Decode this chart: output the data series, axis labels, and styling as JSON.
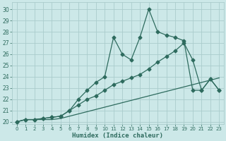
{
  "xlabel": "Humidex (Indice chaleur)",
  "bg_color": "#cce8e8",
  "grid_color": "#aacccc",
  "line_color": "#2e6b5e",
  "xlim": [
    -0.5,
    23.5
  ],
  "ylim": [
    19.8,
    30.6
  ],
  "yticks": [
    20,
    21,
    22,
    23,
    24,
    25,
    26,
    27,
    28,
    29,
    30
  ],
  "xticks": [
    0,
    1,
    2,
    3,
    4,
    5,
    6,
    7,
    8,
    9,
    10,
    11,
    12,
    13,
    14,
    15,
    16,
    17,
    18,
    19,
    20,
    21,
    22,
    23
  ],
  "series1_x": [
    0,
    1,
    2,
    3,
    4,
    5,
    6,
    7,
    8,
    9,
    10,
    11,
    12,
    13,
    14,
    15,
    16,
    17,
    18,
    19,
    20,
    21,
    22,
    23
  ],
  "series1_y": [
    20.0,
    20.2,
    20.2,
    20.2,
    20.2,
    20.3,
    20.5,
    20.7,
    20.9,
    21.1,
    21.3,
    21.5,
    21.7,
    21.9,
    22.1,
    22.3,
    22.5,
    22.7,
    22.9,
    23.1,
    23.3,
    23.5,
    23.7,
    23.9
  ],
  "series2_x": [
    0,
    1,
    2,
    3,
    4,
    5,
    6,
    7,
    8,
    9,
    10,
    11,
    12,
    13,
    14,
    15,
    16,
    17,
    18,
    19,
    20,
    21,
    22,
    23
  ],
  "series2_y": [
    20.0,
    20.2,
    20.2,
    20.3,
    20.4,
    20.5,
    21.0,
    21.5,
    22.0,
    22.3,
    22.8,
    23.3,
    23.6,
    23.9,
    24.2,
    24.7,
    25.3,
    25.8,
    26.3,
    27.0,
    25.5,
    22.8,
    23.8,
    22.8
  ],
  "series3_x": [
    0,
    1,
    2,
    3,
    4,
    5,
    6,
    7,
    8,
    9,
    10,
    11,
    12,
    13,
    14,
    15,
    16,
    17,
    18,
    19,
    20,
    21,
    22,
    23
  ],
  "series3_y": [
    20.0,
    20.2,
    20.2,
    20.3,
    20.4,
    20.5,
    21.0,
    22.0,
    22.8,
    23.5,
    24.0,
    27.5,
    26.0,
    25.5,
    27.5,
    30.0,
    28.0,
    27.7,
    27.5,
    27.2,
    22.8,
    22.8,
    23.8,
    22.8
  ],
  "marker1_positions": [
    0,
    3,
    6,
    9,
    12,
    15,
    18,
    21
  ],
  "marker2_positions": [
    0,
    3,
    5,
    7,
    9,
    11,
    13,
    15,
    17,
    19,
    20,
    21,
    22,
    23
  ],
  "marker3_positions": [
    0,
    3,
    5,
    7,
    9,
    11,
    13,
    15,
    17,
    19,
    20,
    21,
    22,
    23
  ]
}
